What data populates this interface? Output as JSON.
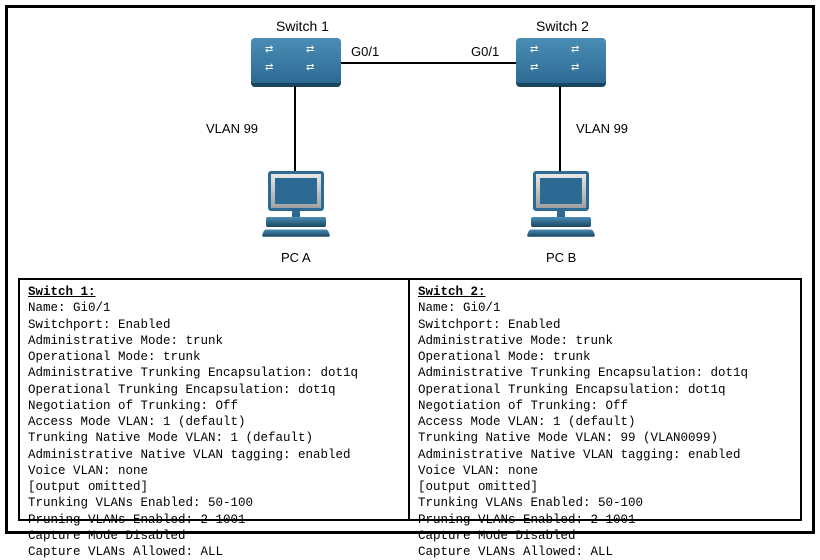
{
  "diagram": {
    "switch1_label": "Switch 1",
    "switch2_label": "Switch 2",
    "port_label_left": "G0/1",
    "port_label_right": "G0/1",
    "vlan_label_left": "VLAN 99",
    "vlan_label_right": "VLAN 99",
    "pc_a_label": "PC A",
    "pc_b_label": "PC B",
    "switch_color": "#2c6a94",
    "switch_highlight": "#4a8db5",
    "line_color": "#000000"
  },
  "switch1": {
    "title": "Switch 1:",
    "lines": [
      "Name: Gi0/1",
      "Switchport: Enabled",
      "Administrative Mode: trunk",
      "Operational Mode: trunk",
      "Administrative Trunking Encapsulation: dot1q",
      "Operational Trunking Encapsulation: dot1q",
      "Negotiation of Trunking: Off",
      "Access Mode VLAN: 1 (default)",
      "Trunking Native Mode VLAN: 1 (default)",
      "Administrative Native VLAN tagging: enabled",
      "Voice VLAN: none",
      "[output omitted]",
      "Trunking VLANs Enabled: 50-100",
      "Pruning VLANs Enabled: 2-1001",
      "Capture Mode Disabled",
      "Capture VLANs Allowed: ALL"
    ]
  },
  "switch2": {
    "title": "Switch 2:",
    "lines": [
      "Name: Gi0/1",
      "Switchport: Enabled",
      "Administrative Mode: trunk",
      "Operational Mode: trunk",
      "Administrative Trunking Encapsulation: dot1q",
      "Operational Trunking Encapsulation: dot1q",
      "Negotiation of Trunking: Off",
      "Access Mode VLAN: 1 (default)",
      "Trunking Native Mode VLAN: 99 (VLAN0099)",
      "Administrative Native VLAN tagging: enabled",
      "Voice VLAN: none",
      "[output omitted]",
      "Trunking VLANs Enabled: 50-100",
      "Pruning VLANs Enabled: 2-1001",
      "Capture Mode Disabled",
      "Capture VLANs Allowed: ALL"
    ]
  }
}
